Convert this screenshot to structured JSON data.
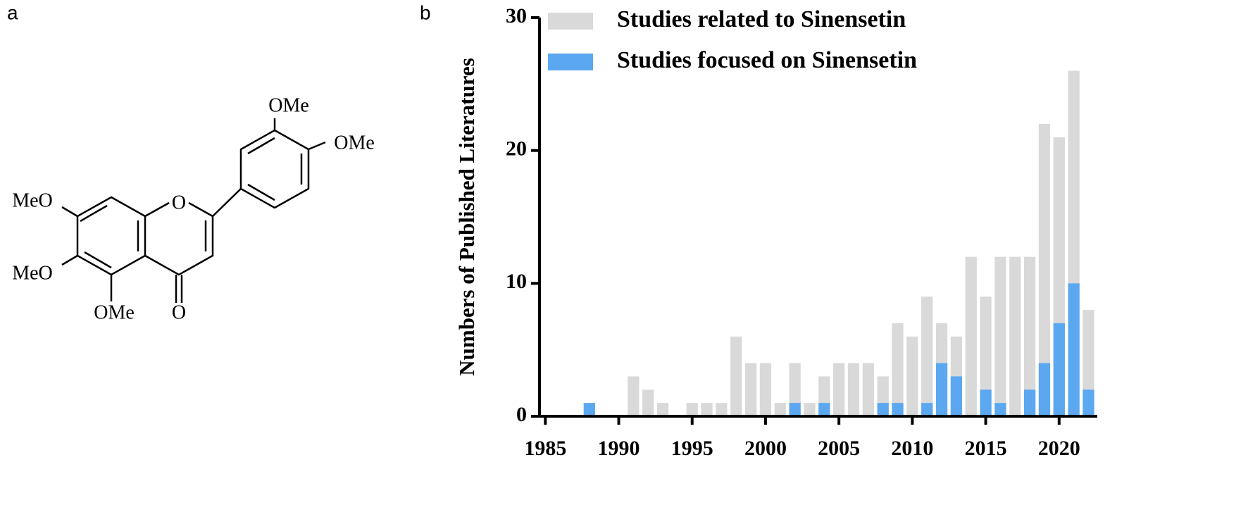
{
  "panel_labels": [
    "a",
    "b"
  ],
  "structure": {
    "labels": [
      "OMe",
      "OMe",
      "MeO",
      "MeO",
      "OMe",
      "O",
      "O"
    ]
  },
  "chart_data": {
    "type": "bar",
    "barmode": "overlay",
    "y_label": "Numbers of Published Literatures",
    "x": [
      1988,
      1991,
      1992,
      1993,
      1995,
      1996,
      1997,
      1998,
      1999,
      2000,
      2001,
      2002,
      2003,
      2004,
      2005,
      2006,
      2007,
      2008,
      2009,
      2010,
      2011,
      2012,
      2013,
      2014,
      2015,
      2016,
      2017,
      2018,
      2019,
      2020,
      2021,
      2022
    ],
    "series": [
      {
        "name": "Studies related to Sinensetin",
        "color": "#d9d9d9",
        "values": [
          1,
          3,
          2,
          1,
          1,
          1,
          1,
          6,
          4,
          4,
          1,
          4,
          1,
          3,
          4,
          4,
          4,
          3,
          7,
          6,
          9,
          7,
          6,
          12,
          9,
          12,
          12,
          12,
          22,
          21,
          26,
          8
        ]
      },
      {
        "name": "Studies focused on Sinensetin",
        "color": "#5ba8f0",
        "values": [
          1,
          0,
          0,
          0,
          0,
          0,
          0,
          0,
          0,
          0,
          0,
          1,
          0,
          1,
          0,
          0,
          0,
          1,
          1,
          0,
          1,
          4,
          3,
          0,
          2,
          1,
          0,
          2,
          4,
          7,
          10,
          2
        ]
      }
    ],
    "xlim": [
      1984.6,
      2022.6
    ],
    "xticks": [
      1985,
      1990,
      1995,
      2000,
      2005,
      2010,
      2015,
      2020
    ],
    "ylim": [
      0,
      30
    ],
    "yticks": [
      0,
      10,
      20,
      30
    ],
    "grid": false,
    "legend": "top"
  }
}
